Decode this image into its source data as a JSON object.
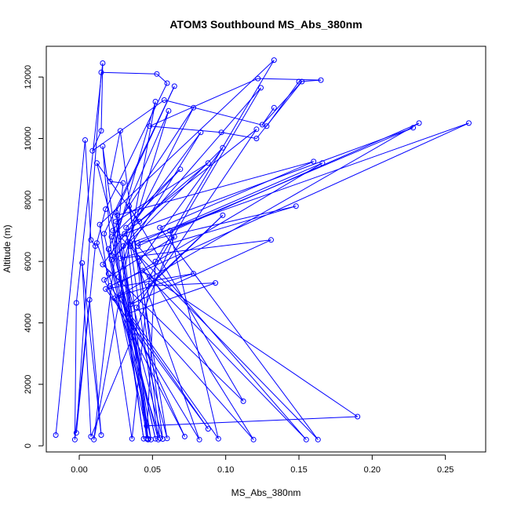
{
  "chart_data": {
    "type": "line",
    "title": "ATOM3 Southbound MS_Abs_380nm",
    "xlabel": "MS_Abs_380nm",
    "ylabel": "Altitude (m)",
    "xlim": [
      -0.0225,
      0.2775
    ],
    "ylim": [
      -200,
      13000
    ],
    "xticks": [
      0.0,
      0.05,
      0.1,
      0.15,
      0.2,
      0.25
    ],
    "xtick_labels": [
      "0.00",
      "0.05",
      "0.10",
      "0.15",
      "0.20",
      "0.25"
    ],
    "yticks": [
      0,
      2000,
      4000,
      6000,
      8000,
      10000,
      12000
    ],
    "ytick_labels": [
      "0",
      "2000",
      "4000",
      "6000",
      "8000",
      "10000",
      "12000"
    ],
    "grid": false,
    "marker": "open-circle",
    "color": "#0000ff",
    "series": [
      {
        "points": [
          [
            -0.016,
            350
          ],
          [
            0.004,
            9950
          ],
          [
            0.008,
            6700
          ],
          [
            0.011,
            6500
          ],
          [
            -0.002,
            420
          ],
          [
            0.015,
            12150
          ],
          [
            0.053,
            12100
          ],
          [
            0.06,
            11800
          ],
          [
            0.018,
            7700
          ],
          [
            0.012,
            6600
          ],
          [
            0.02,
            5600
          ],
          [
            0.055,
            250
          ],
          [
            0.028,
            10250
          ],
          [
            0.021,
            8600
          ],
          [
            0.03,
            8550
          ],
          [
            0.01,
            200
          ],
          [
            0.052,
            11200
          ],
          [
            0.022,
            6200
          ],
          [
            0.016,
            9750
          ],
          [
            0.044,
            230
          ],
          [
            0.023,
            7000
          ],
          [
            0.078,
            11000
          ],
          [
            0.03,
            6500
          ],
          [
            0.047,
            230
          ],
          [
            0.017,
            6900
          ],
          [
            0.065,
            11700
          ],
          [
            0.025,
            7600
          ],
          [
            0.049,
            200
          ],
          [
            0.02,
            6400
          ],
          [
            0.061,
            10900
          ],
          [
            0.027,
            5500
          ],
          [
            0.052,
            230
          ],
          [
            0.022,
            6800
          ],
          [
            0.069,
            9000
          ],
          [
            0.032,
            7100
          ],
          [
            0.047,
            200
          ],
          [
            0.025,
            7300
          ],
          [
            0.088,
            9200
          ],
          [
            0.041,
            7300
          ],
          [
            0.012,
            9200
          ],
          [
            0.06,
            240
          ],
          [
            0.034,
            7800
          ],
          [
            0.112,
            1450
          ],
          [
            0.016,
            5900
          ],
          [
            0.083,
            10200
          ],
          [
            0.035,
            6500
          ],
          [
            0.054,
            200
          ],
          [
            0.022,
            6050
          ],
          [
            0.098,
            9700
          ],
          [
            0.041,
            6000
          ],
          [
            0.057,
            220
          ],
          [
            0.024,
            6150
          ],
          [
            0.124,
            11650
          ],
          [
            0.048,
            5500
          ],
          [
            0.036,
            230
          ],
          [
            0.014,
            7200
          ],
          [
            0.133,
            12550
          ],
          [
            0.052,
            6000
          ],
          [
            0.046,
            230
          ],
          [
            0.026,
            7500
          ],
          [
            0.16,
            9250
          ],
          [
            0.055,
            7100
          ],
          [
            0.163,
            200
          ],
          [
            0.028,
            6800
          ],
          [
            0.121,
            10300
          ],
          [
            0.039,
            4500
          ],
          [
            0.119,
            200
          ],
          [
            0.031,
            6900
          ],
          [
            0.228,
            10350
          ],
          [
            0.062,
            7000
          ],
          [
            0.095,
            230
          ],
          [
            0.021,
            5200
          ],
          [
            0.266,
            10500
          ],
          [
            0.035,
            6600
          ],
          [
            0.082,
            200
          ],
          [
            0.024,
            4800
          ],
          [
            0.232,
            10500
          ],
          [
            0.04,
            6500
          ],
          [
            0.155,
            200
          ],
          [
            0.043,
            5700
          ],
          [
            0.19,
            950
          ],
          [
            0.046,
            650
          ],
          [
            0.028,
            5300
          ],
          [
            0.166,
            9200
          ],
          [
            0.04,
            6600
          ],
          [
            0.148,
            7800
          ],
          [
            0.028,
            6100
          ],
          [
            0.131,
            6700
          ],
          [
            0.035,
            4600
          ],
          [
            0.098,
            7500
          ],
          [
            0.047,
            5200
          ],
          [
            0.093,
            5300
          ],
          [
            0.033,
            4300
          ],
          [
            0.088,
            550
          ],
          [
            0.018,
            5100
          ],
          [
            0.078,
            5600
          ],
          [
            0.028,
            4900
          ],
          [
            0.072,
            300
          ],
          [
            0.017,
            5400
          ],
          [
            0.065,
            6800
          ],
          [
            0.008,
            300
          ],
          [
            0.002,
            5950
          ],
          [
            0.015,
            350
          ],
          [
            0.007,
            4750
          ],
          [
            -0.003,
            200
          ],
          [
            -0.002,
            4650
          ],
          [
            0.016,
            12450
          ],
          [
            0.015,
            10250
          ],
          [
            0.009,
            9600
          ],
          [
            0.058,
            11250
          ],
          [
            0.128,
            10400
          ],
          [
            0.15,
            11850
          ],
          [
            0.165,
            11900
          ],
          [
            0.122,
            11950
          ],
          [
            0.048,
            10400
          ],
          [
            0.097,
            10200
          ],
          [
            0.121,
            10000
          ],
          [
            0.152,
            11850
          ],
          [
            0.125,
            10450
          ],
          [
            0.133,
            11000
          ]
        ]
      }
    ]
  }
}
